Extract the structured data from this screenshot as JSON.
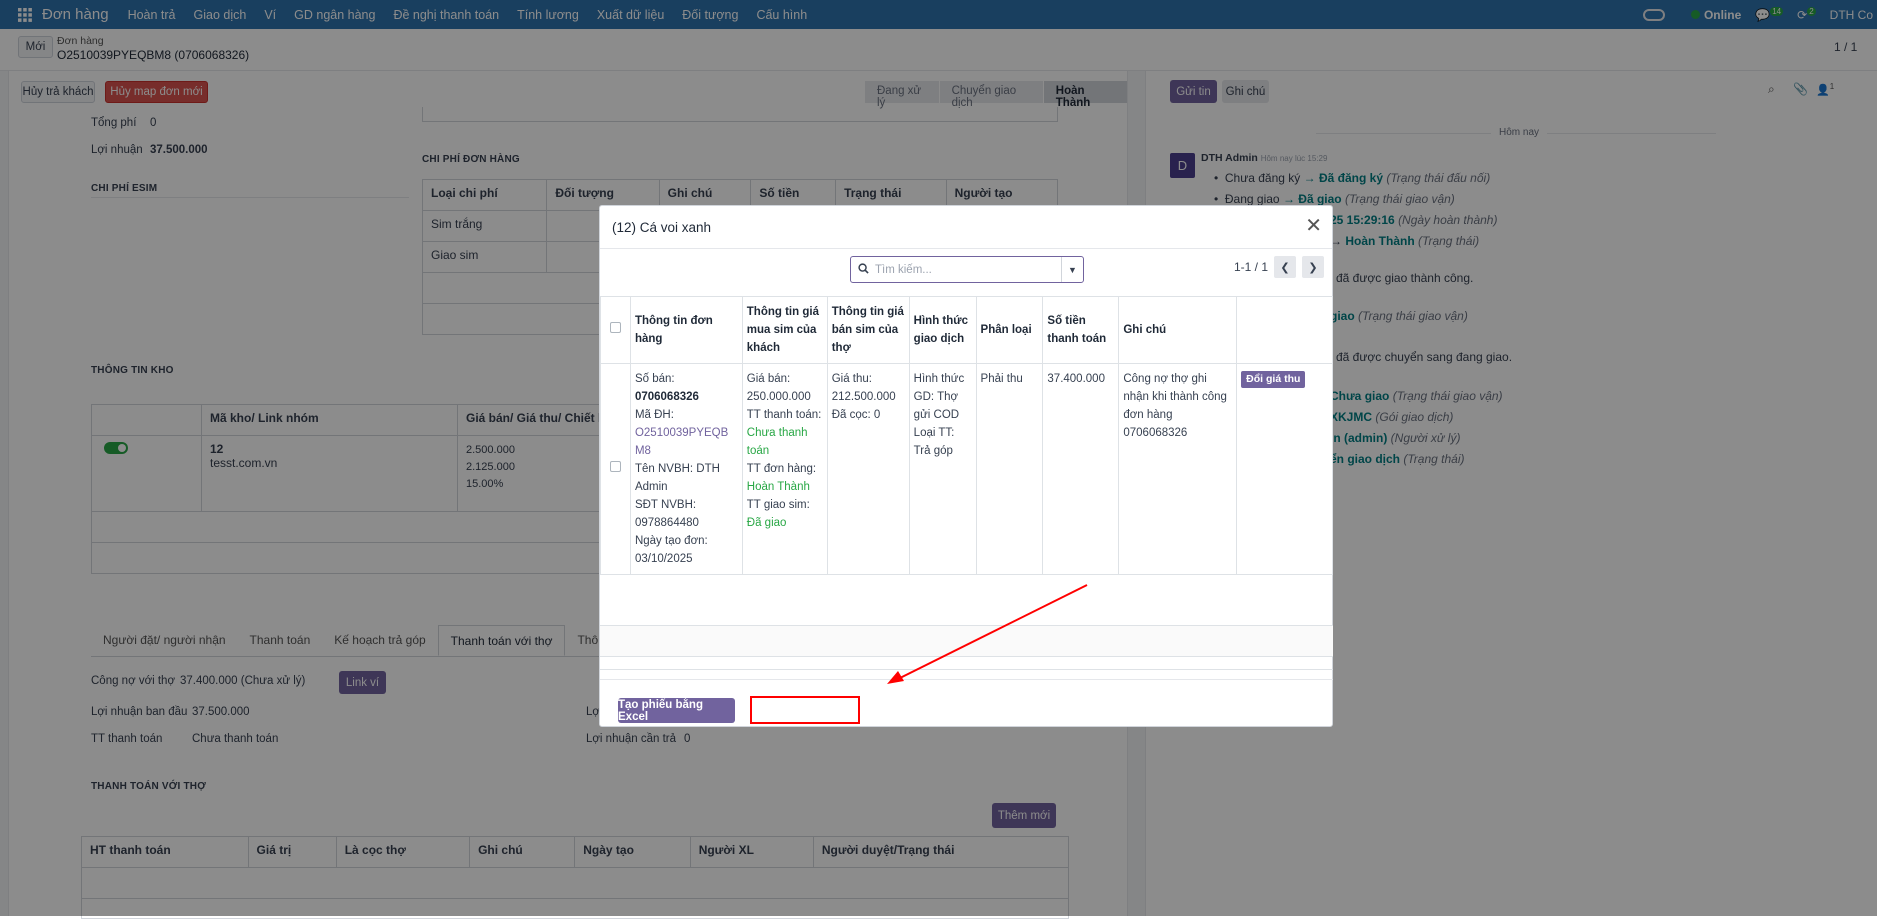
{
  "topnav": {
    "brand": "Đơn hàng",
    "menu": [
      "Hoàn trả",
      "Giao dịch",
      "Ví",
      "GD ngân hàng",
      "Đề nghị thanh toán",
      "Tính lương",
      "Xuất dữ liệu",
      "Đối tượng",
      "Cấu hình"
    ],
    "online": "Online",
    "msg_count": "14",
    "activity_count": "2",
    "company": "DTH Co"
  },
  "breadcrumb": {
    "new_button": "Mới",
    "parent": "Đơn hàng",
    "record": "O2510039PYEQBM8 (0706068326)",
    "pager": "1 / 1"
  },
  "actions": {
    "cancel_return": "Hủy trả khách",
    "cancel_map": "Hủy map đơn mới"
  },
  "statusbar": [
    "Đang xử lý",
    "Chuyển giao dịch",
    "Hoàn Thành"
  ],
  "form": {
    "tong_phi_label": "Tổng phí",
    "tong_phi_value": "0",
    "loi_nhuan_label": "Lợi nhuận",
    "loi_nhuan_value": "37.500.000",
    "chi_phi_esim": "CHI PHÍ ESIM",
    "chi_phi_don_hang": "CHI PHÍ ĐƠN HÀNG",
    "cost_headers": [
      "Loại chi phí",
      "Đối tượng",
      "Ghi chú",
      "Số tiền",
      "Trạng thái",
      "Người tạo"
    ],
    "cost_rows": [
      "Sim trắng",
      "Giao sim"
    ],
    "thong_tin_kho": "THÔNG TIN KHO",
    "kho_headers": [
      "Mã kho/ Link nhóm",
      "Giá bán/ Giá thu/ Chiết kh"
    ],
    "kho_row": {
      "code": "12",
      "link": "tesst.com.vn",
      "v1": "2.500.000",
      "v2": "2.125.000",
      "v3": "15.00%"
    },
    "tabs": [
      "Người đặt/ người nhận",
      "Thanh toán",
      "Kế hoạch trả góp",
      "Thanh toán với thợ",
      "Thô"
    ],
    "cong_no_label": "Công nợ với thợ",
    "cong_no_value": "37.400.000 (Chưa xử lý)",
    "link_vi": "Link ví",
    "lnbd_label": "Lợi nhuận ban đầu",
    "lnbd_value": "37.500.000",
    "tt_label": "TT thanh toán",
    "tt_value": "Chưa thanh toán",
    "lnct_label": "Lợi nhuận cần trả",
    "lnct_value": "0",
    "loi_short": "Lợi",
    "thanh_toan_voi_tho": "THANH TOÁN VỚI THỢ",
    "them_moi": "Thêm mới",
    "pay_headers": [
      "HT thanh toán",
      "Giá trị",
      "Là cọc thợ",
      "Ghi chú",
      "Ngày tạo",
      "Người XL",
      "Người duyệt/Trạng thái"
    ]
  },
  "chatter": {
    "send": "Gửi tin",
    "note": "Ghi chú",
    "follower_count": "1",
    "today": "Hôm nay",
    "author": "DTH Admin",
    "author_initial": "D",
    "time": "Hôm nay lúc 15:29",
    "lines": [
      {
        "old": "Chưa đăng ký",
        "new": "Đã đăng ký",
        "field": "(Trạng thái đấu nối)"
      },
      {
        "old": "Đang giao",
        "new": "Đã giao",
        "field": "(Trạng thái giao vận)"
      },
      {
        "old": "",
        "new": "25 15:29:16",
        "field": "(Ngày hoàn thành)"
      },
      {
        "old": "",
        "new": "Hoàn Thành",
        "field": "(Trạng thái)"
      }
    ],
    "msg1": "i đã được giao thành công.",
    "line5": {
      "new": "giao",
      "field": "(Trạng thái giao vận)"
    },
    "msg2": "i đã được chuyển sang đang giao.",
    "lines2": [
      {
        "new": "Chưa giao",
        "field": "(Trạng thái giao vận)"
      },
      {
        "new": "XKJMC",
        "field": "(Gói giao dịch)"
      },
      {
        "new": "in (admin)",
        "field": "(Người xử lý)"
      },
      {
        "new": "ển giao dịch",
        "field": "(Trạng thái)"
      }
    ]
  },
  "modal": {
    "title": "(12) Cá voi xanh",
    "search_placeholder": "Tìm kiếm...",
    "pager": "1-1 / 1",
    "headers": [
      "Thông tin đơn hàng",
      "Thông tin giá mua sim của khách",
      "Thông tin giá bán sim của thợ",
      "Hình thức giao dịch",
      "Phân loại",
      "Số tiền thanh toán",
      "Ghi chú"
    ],
    "row": {
      "so_ban_label": "Số bán:",
      "so_ban": "0706068326",
      "ma_dh_label": "Mã ĐH:",
      "ma_dh": "O2510039PYEQBM8",
      "nvbh": "Tên NVBH: DTH Admin",
      "sdt": "SĐT NVBH: 0978864480",
      "ngay_tao": "Ngày tạo đơn: 03/10/2025",
      "gia_ban": "Giá bán: 250.000.000",
      "tt_tt_label": "TT thanh toán:",
      "tt_tt": "Chưa thanh toán",
      "tt_dh_label": "TT đơn hàng:",
      "tt_dh": "Hoàn Thành",
      "tt_gs_label": "TT giao sim:",
      "tt_gs": "Đã giao",
      "gia_thu": "Giá thu: 212.500.000",
      "dat_coc": "Đã cọc: 0",
      "hinh_thuc": "Hình thức GD: Thợ gửi COD",
      "loai_tt": "Loại TT: Trả góp",
      "phan_loai": "Phải thu",
      "so_tien": "37.400.000",
      "ghi_chu": "Công nợ thợ ghi nhận khi thành công đơn hàng 0706068326",
      "action": "Đổi giá thu"
    },
    "create_excel": "Tạo phiếu bằng Excel"
  },
  "colors": {
    "nav": "#2f73ad",
    "primary": "#71639e",
    "danger": "#d9534f",
    "annotation": "#ff0000"
  }
}
